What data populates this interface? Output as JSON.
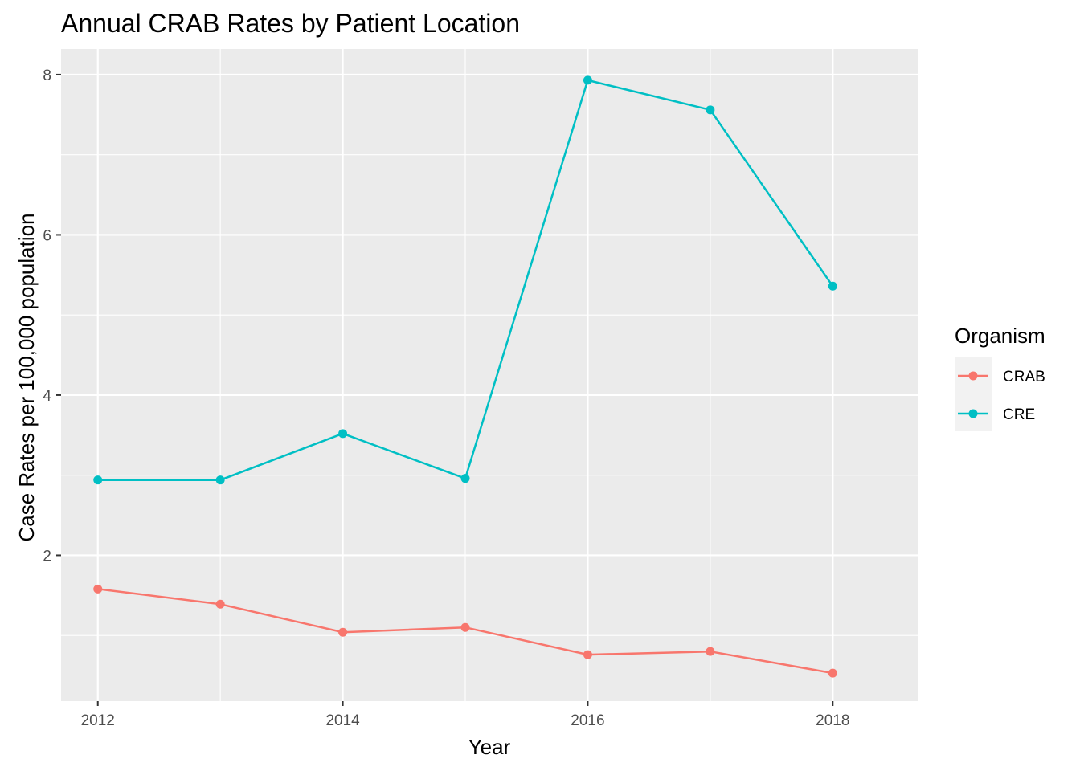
{
  "chart_data": {
    "type": "line",
    "title": "Annual CRAB Rates by Patient Location",
    "xlabel": "Year",
    "ylabel": "Case Rates per 100,000 population",
    "x": [
      2012,
      2013,
      2014,
      2015,
      2016,
      2017,
      2018
    ],
    "x_ticks": [
      "2012",
      "2014",
      "2016",
      "2018"
    ],
    "y_ticks": [
      "2",
      "4",
      "6",
      "8"
    ],
    "xlim": [
      2011.7,
      2018.7
    ],
    "ylim": [
      0.18,
      8.32
    ],
    "grid": true,
    "series": [
      {
        "name": "CRAB",
        "color": "#F8766D",
        "values": [
          1.58,
          1.39,
          1.04,
          1.1,
          0.76,
          0.8,
          0.53
        ]
      },
      {
        "name": "CRE",
        "color": "#00BFC4",
        "values": [
          2.94,
          2.94,
          3.52,
          2.96,
          7.93,
          7.56,
          5.36
        ]
      }
    ],
    "legend": {
      "title": "Organism",
      "position": "right"
    },
    "panel_background": "#EBEBEB",
    "grid_color": "#FFFFFF"
  }
}
